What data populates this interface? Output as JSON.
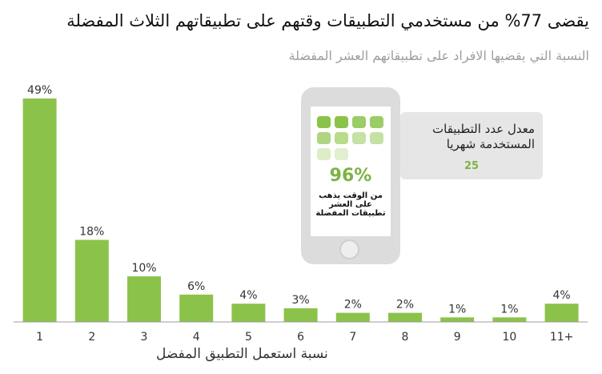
{
  "title": "يقضى 77% من مستخدمي التطبيقات وقتهم على تطبيقاتهم الثلاث المفضلة",
  "subtitle": "النسبة التي يقضيها الافراد على تطبيقاتهم العشر المفضلة",
  "colors": {
    "bar": "#8bc34a",
    "axis": "#9e9e9e",
    "text": "#333333"
  },
  "chart_data": {
    "type": "bar",
    "categories": [
      "1",
      "2",
      "3",
      "4",
      "5",
      "6",
      "7",
      "8",
      "9",
      "10",
      "11+"
    ],
    "values": [
      49,
      18,
      10,
      6,
      4,
      3,
      2,
      2,
      1,
      1,
      4
    ],
    "value_labels": [
      "49%",
      "18%",
      "10%",
      "6%",
      "4%",
      "3%",
      "2%",
      "2%",
      "1%",
      "1%",
      "4%"
    ],
    "xlabel": "نسبة استعمل التطبيق المفضل",
    "ylabel": "",
    "ylim": [
      0,
      49
    ],
    "grid": false,
    "legend": "none"
  },
  "infographic": {
    "bubble_text": "معدل عدد التطبيقات المستخدمة شهريا",
    "bubble_value": "25",
    "phone_percent": "96%",
    "phone_caption": "من الوقت يذهب على العشر تطبيقات المفضلة",
    "phone_icon": "smartphone-icon",
    "app_tile_colors": [
      "#8bc34a",
      "#8bc34a",
      "#9ccc65",
      "#9ccc65",
      "#aed581",
      "#b7dc8a",
      "#c5e1a5",
      "#c5e1a5",
      "#dcedc8",
      "#e1eecf"
    ]
  }
}
